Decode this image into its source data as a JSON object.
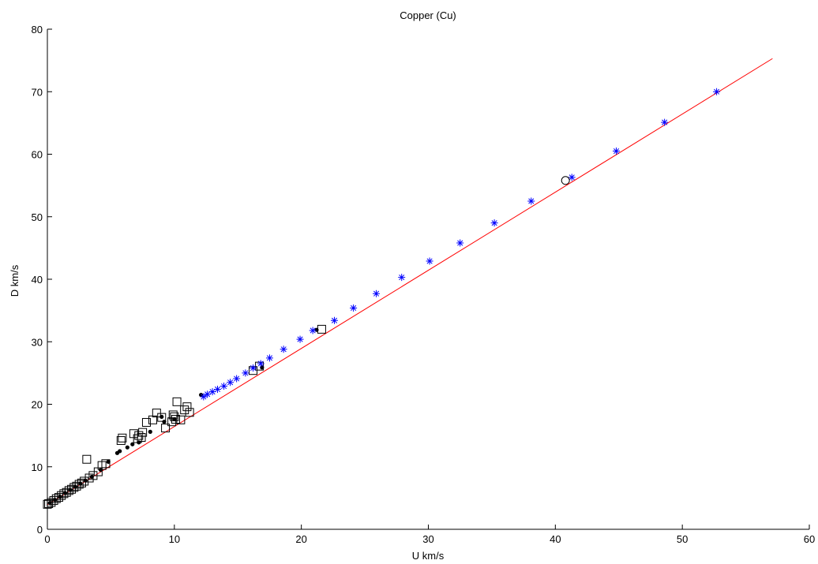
{
  "chart_data": {
    "type": "scatter",
    "title": "Copper (Cu)",
    "xlabel": "U km/s",
    "ylabel": "D km/s",
    "xlim": [
      0,
      60
    ],
    "ylim": [
      0,
      80
    ],
    "xticks": [
      0,
      10,
      20,
      30,
      40,
      50,
      60
    ],
    "yticks": [
      0,
      10,
      20,
      30,
      40,
      50,
      60,
      70,
      80
    ],
    "grid": false,
    "fit_line": {
      "color": "#ff0000",
      "points": [
        [
          0,
          3.94
        ],
        [
          57.1,
          75.3
        ]
      ]
    },
    "series": [
      {
        "marker": "square",
        "color": "#000000",
        "points": [
          [
            0.0,
            4.0
          ],
          [
            0.1,
            4.1
          ],
          [
            0.3,
            4.3
          ],
          [
            0.5,
            4.6
          ],
          [
            0.7,
            4.9
          ],
          [
            0.9,
            5.1
          ],
          [
            1.1,
            5.4
          ],
          [
            1.3,
            5.7
          ],
          [
            1.5,
            5.9
          ],
          [
            1.7,
            6.2
          ],
          [
            1.9,
            6.4
          ],
          [
            2.1,
            6.7
          ],
          [
            2.3,
            6.9
          ],
          [
            2.5,
            7.2
          ],
          [
            2.7,
            7.4
          ],
          [
            2.9,
            7.7
          ],
          [
            3.1,
            11.2
          ],
          [
            3.3,
            8.2
          ],
          [
            3.6,
            8.6
          ],
          [
            4.0,
            9.2
          ],
          [
            4.3,
            10.2
          ],
          [
            4.6,
            10.5
          ],
          [
            5.8,
            14.2
          ],
          [
            5.9,
            14.6
          ],
          [
            6.8,
            15.3
          ],
          [
            7.1,
            14.5
          ],
          [
            7.2,
            15.0
          ],
          [
            7.4,
            14.7
          ],
          [
            7.5,
            15.5
          ],
          [
            7.8,
            17.1
          ],
          [
            8.3,
            17.5
          ],
          [
            8.6,
            18.6
          ],
          [
            9.0,
            17.9
          ],
          [
            9.3,
            16.2
          ],
          [
            9.8,
            17.2
          ],
          [
            9.9,
            18.3
          ],
          [
            10.0,
            18.0
          ],
          [
            10.1,
            17.6
          ],
          [
            10.2,
            20.4
          ],
          [
            10.5,
            17.5
          ],
          [
            10.8,
            19.1
          ],
          [
            11.0,
            19.6
          ],
          [
            11.2,
            18.7
          ],
          [
            16.2,
            25.4
          ],
          [
            16.7,
            26.1
          ],
          [
            21.6,
            32.0
          ]
        ]
      },
      {
        "marker": "dot",
        "color": "#000000",
        "points": [
          [
            0.2,
            4.2
          ],
          [
            0.6,
            4.7
          ],
          [
            1.0,
            5.2
          ],
          [
            1.4,
            5.8
          ],
          [
            1.8,
            6.3
          ],
          [
            2.2,
            6.8
          ],
          [
            2.6,
            7.3
          ],
          [
            3.0,
            7.8
          ],
          [
            3.5,
            8.4
          ],
          [
            4.2,
            9.5
          ],
          [
            4.8,
            10.8
          ],
          [
            5.5,
            12.2
          ],
          [
            5.7,
            12.5
          ],
          [
            6.3,
            13.1
          ],
          [
            6.7,
            13.6
          ],
          [
            7.2,
            13.9
          ],
          [
            8.1,
            15.6
          ],
          [
            9.0,
            18.0
          ],
          [
            9.2,
            17.2
          ],
          [
            10.0,
            17.6
          ],
          [
            12.1,
            21.5
          ],
          [
            16.9,
            25.9
          ],
          [
            21.2,
            31.9
          ]
        ]
      },
      {
        "marker": "asterisk",
        "color": "#0000ff",
        "points": [
          [
            12.3,
            21.2
          ],
          [
            12.6,
            21.6
          ],
          [
            13.0,
            22.0
          ],
          [
            13.4,
            22.4
          ],
          [
            13.9,
            22.9
          ],
          [
            14.4,
            23.5
          ],
          [
            14.9,
            24.1
          ],
          [
            15.6,
            25.0
          ],
          [
            16.2,
            25.8
          ],
          [
            16.8,
            26.5
          ],
          [
            17.5,
            27.4
          ],
          [
            18.6,
            28.8
          ],
          [
            19.9,
            30.4
          ],
          [
            20.9,
            31.8
          ],
          [
            22.6,
            33.4
          ],
          [
            24.1,
            35.4
          ],
          [
            25.9,
            37.7
          ],
          [
            27.9,
            40.3
          ],
          [
            30.1,
            42.9
          ],
          [
            32.5,
            45.8
          ],
          [
            35.2,
            49.0
          ],
          [
            38.1,
            52.5
          ],
          [
            41.3,
            56.3
          ],
          [
            44.8,
            60.5
          ],
          [
            48.6,
            65.1
          ],
          [
            52.7,
            70.0
          ]
        ]
      },
      {
        "marker": "circle",
        "color": "#000000",
        "points": [
          [
            40.8,
            55.8
          ]
        ]
      }
    ]
  }
}
